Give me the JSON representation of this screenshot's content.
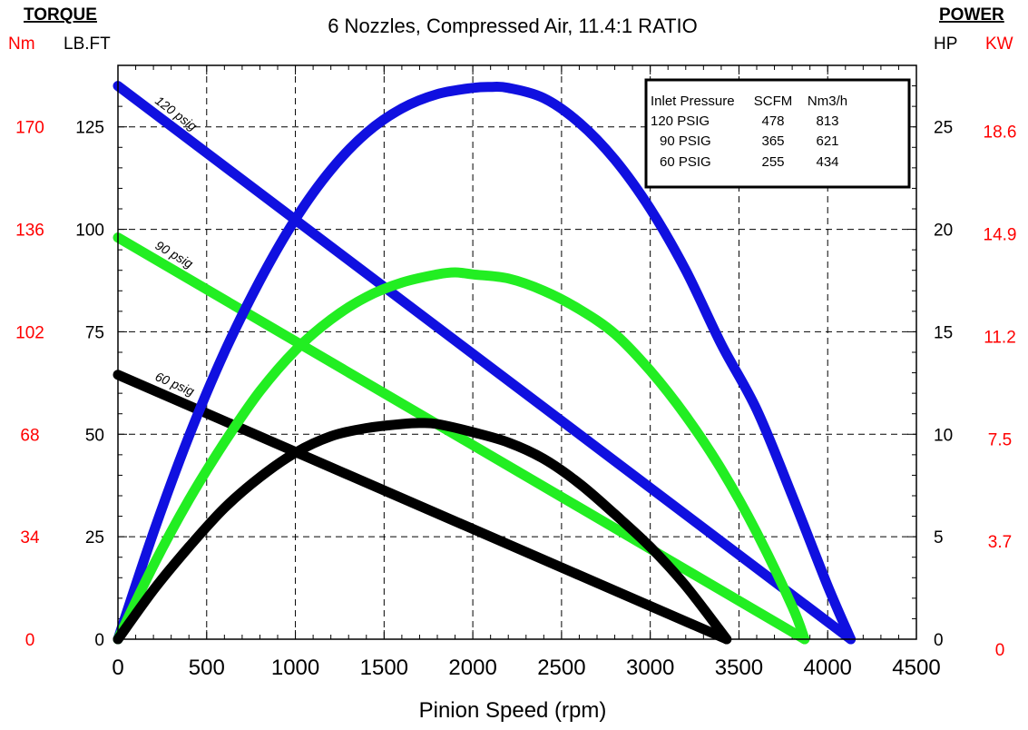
{
  "chart_data": {
    "type": "line",
    "title": "6 Nozzles, Compressed Air, 11.4:1 RATIO",
    "xlabel": "Pinion Speed (rpm)",
    "x_ticks": [
      "0",
      "500",
      "1000",
      "1500",
      "2000",
      "2500",
      "3000",
      "3500",
      "4000",
      "4500"
    ],
    "xlim": [
      0,
      4500
    ],
    "left_axis": {
      "heading": "TORQUE",
      "unit_nm": "Nm",
      "unit_lbft": "LB.FT",
      "ylim": [
        0,
        140
      ],
      "ticks_lbft": [
        "0",
        "25",
        "50",
        "75",
        "100",
        "125"
      ],
      "ticks_nm": [
        "0",
        "34",
        "68",
        "102",
        "136",
        "170"
      ]
    },
    "right_axis": {
      "heading": "POWER",
      "unit_hp": "HP",
      "unit_kw": "KW",
      "ylim": [
        0,
        28
      ],
      "ticks_hp": [
        "0",
        "5",
        "10",
        "15",
        "20",
        "25"
      ],
      "ticks_kw": [
        "0",
        "3.7",
        "7.5",
        "11.2",
        "14.9",
        "18.6"
      ]
    },
    "grid": true,
    "legend_position": "top-right",
    "legend": {
      "headers": [
        "Inlet Pressure",
        "SCFM",
        "Nm3/h"
      ],
      "rows": [
        [
          "120 PSIG",
          "478",
          "813"
        ],
        [
          "90 PSIG",
          "365",
          "621"
        ],
        [
          "60 PSIG",
          "255",
          "434"
        ]
      ]
    },
    "series": [
      {
        "name": "120 psig",
        "kind": "torque",
        "axis": "left",
        "color": "#1010e0",
        "x": [
          0,
          4130
        ],
        "y": [
          135,
          0
        ]
      },
      {
        "name": "90 psig",
        "kind": "torque",
        "axis": "left",
        "color": "#22ee22",
        "x": [
          0,
          3870
        ],
        "y": [
          98,
          0
        ]
      },
      {
        "name": "60 psig",
        "kind": "torque",
        "axis": "left",
        "color": "#000000",
        "x": [
          0,
          3430
        ],
        "y": [
          64.5,
          0
        ]
      },
      {
        "kind": "power",
        "axis": "right",
        "color": "#1010e0",
        "x": [
          0,
          200,
          400,
          600,
          800,
          1000,
          1200,
          1400,
          1600,
          1800,
          2000,
          2100,
          2200,
          2400,
          2600,
          2800,
          3000,
          3200,
          3400,
          3600,
          3800,
          4000,
          4130
        ],
        "y": [
          0,
          5.2,
          9.9,
          14.0,
          17.5,
          20.5,
          22.9,
          24.7,
          25.9,
          26.6,
          26.9,
          26.95,
          26.9,
          26.4,
          25.2,
          23.4,
          21.0,
          18.0,
          14.4,
          11.2,
          7.0,
          2.6,
          0
        ]
      },
      {
        "kind": "power",
        "axis": "right",
        "color": "#22ee22",
        "x": [
          0,
          200,
          400,
          600,
          800,
          1000,
          1200,
          1400,
          1600,
          1800,
          1900,
          2000,
          2200,
          2400,
          2600,
          2800,
          3000,
          3200,
          3400,
          3600,
          3800,
          3870
        ],
        "y": [
          0,
          3.6,
          6.8,
          9.6,
          12.1,
          14.1,
          15.6,
          16.7,
          17.4,
          17.8,
          17.9,
          17.8,
          17.6,
          17.0,
          16.1,
          14.9,
          13.1,
          10.9,
          8.3,
          5.2,
          1.6,
          0
        ]
      },
      {
        "kind": "power",
        "axis": "right",
        "color": "#000000",
        "x": [
          0,
          200,
          400,
          600,
          800,
          1000,
          1200,
          1400,
          1600,
          1700,
          1800,
          2000,
          2200,
          2400,
          2600,
          2800,
          3000,
          3200,
          3430
        ],
        "y": [
          0,
          2.4,
          4.5,
          6.4,
          7.9,
          9.1,
          9.9,
          10.3,
          10.5,
          10.55,
          10.5,
          10.1,
          9.6,
          8.8,
          7.6,
          6.1,
          4.5,
          2.6,
          0
        ]
      }
    ],
    "curve_labels": [
      {
        "text": "120 psig",
        "series": "120 psig"
      },
      {
        "text": "90 psig",
        "series": "90 psig"
      },
      {
        "text": "60 psig",
        "series": "60 psig"
      }
    ]
  }
}
